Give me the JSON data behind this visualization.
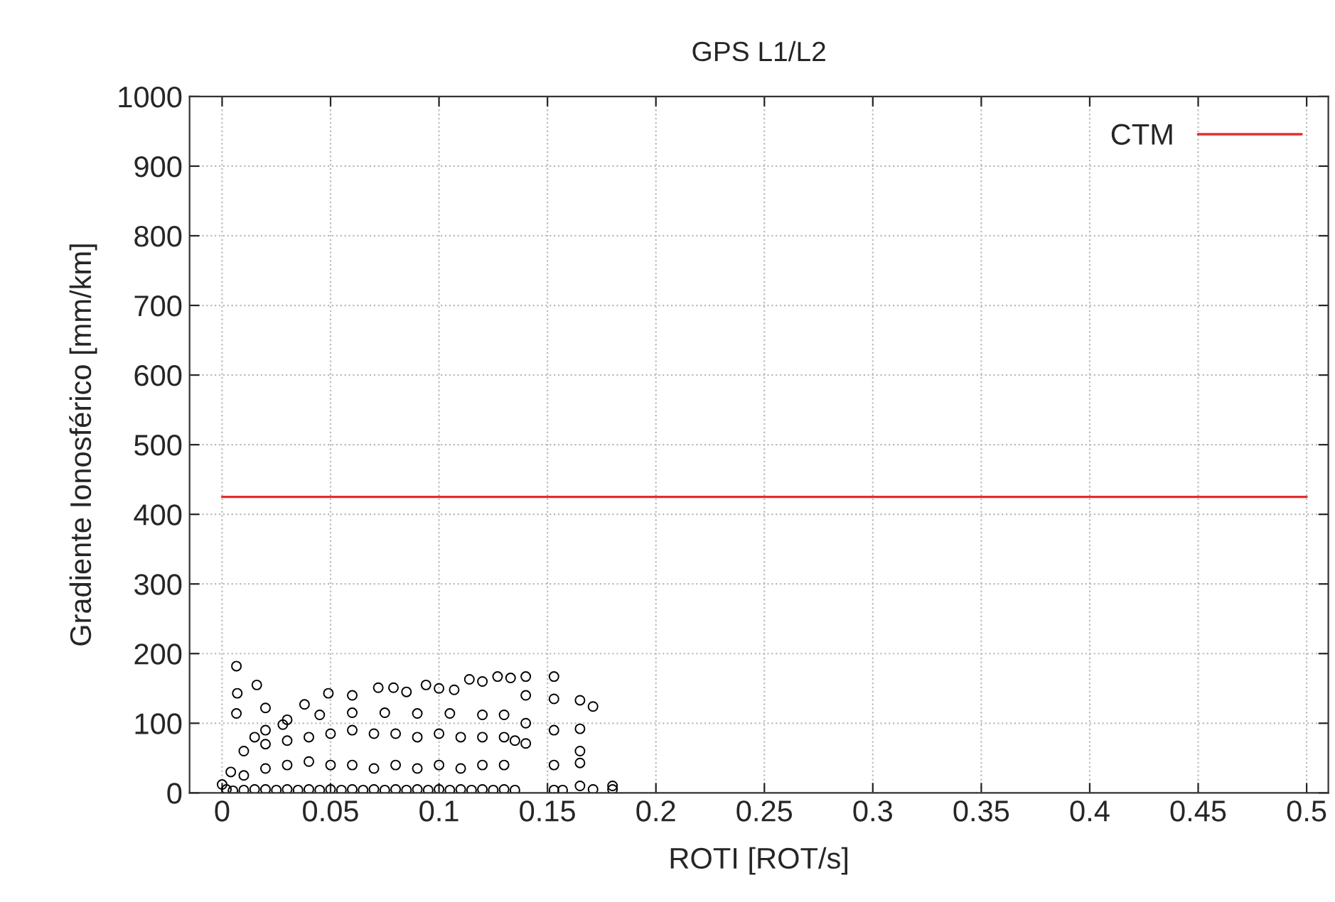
{
  "chart_data": {
    "type": "scatter",
    "title": "GPS L1/L2",
    "xlabel": "ROTI [ROT/s]",
    "ylabel": "Gradiente Ionosférico [mm/km]",
    "xlim": [
      -0.015,
      0.51
    ],
    "xticks": [
      0,
      0.05,
      0.1,
      0.15,
      0.2,
      0.25,
      0.3,
      0.35,
      0.4,
      0.45,
      0.5
    ],
    "ylim": [
      0,
      1000
    ],
    "yticks": [
      0,
      100,
      200,
      300,
      400,
      500,
      600,
      700,
      800,
      900,
      1000
    ],
    "grid": true,
    "legend": "top right",
    "series": [
      {
        "marker": "circle",
        "color": "#000000",
        "x": [
          0.0,
          0.002,
          0.004,
          0.0066,
          0.007,
          0.0066,
          0.016,
          0.02,
          0.01,
          0.015,
          0.02,
          0.028,
          0.038,
          0.049,
          0.06,
          0.072,
          0.079,
          0.085,
          0.094,
          0.1,
          0.107,
          0.114,
          0.12,
          0.127,
          0.133,
          0.14,
          0.14,
          0.14,
          0.14,
          0.153,
          0.153,
          0.153,
          0.153,
          0.153,
          0.157,
          0.165,
          0.165,
          0.165,
          0.165,
          0.165,
          0.171,
          0.171,
          0.18,
          0.18,
          0.005,
          0.01,
          0.015,
          0.02,
          0.025,
          0.03,
          0.035,
          0.04,
          0.045,
          0.05,
          0.055,
          0.06,
          0.065,
          0.07,
          0.075,
          0.08,
          0.085,
          0.09,
          0.095,
          0.1,
          0.105,
          0.11,
          0.115,
          0.12,
          0.125,
          0.13,
          0.135,
          0.01,
          0.02,
          0.03,
          0.04,
          0.05,
          0.06,
          0.07,
          0.08,
          0.09,
          0.1,
          0.11,
          0.12,
          0.13,
          0.02,
          0.03,
          0.04,
          0.05,
          0.06,
          0.07,
          0.08,
          0.09,
          0.1,
          0.11,
          0.12,
          0.13,
          0.135,
          0.03,
          0.045,
          0.06,
          0.075,
          0.09,
          0.105,
          0.12,
          0.13
        ],
        "values": [
          12,
          5,
          30,
          182,
          143,
          114,
          155,
          122,
          60,
          80,
          90,
          98,
          127,
          143,
          140,
          151,
          151,
          145,
          155,
          150,
          148,
          163,
          160,
          167,
          165,
          167,
          140,
          100,
          71,
          167,
          135,
          90,
          40,
          4,
          4,
          133,
          92,
          60,
          43,
          10,
          124,
          5,
          10,
          5,
          3,
          4,
          5,
          5,
          4,
          5,
          4,
          5,
          4,
          5,
          4,
          5,
          4,
          5,
          4,
          5,
          4,
          5,
          4,
          5,
          4,
          5,
          4,
          5,
          4,
          5,
          4,
          25,
          35,
          40,
          45,
          40,
          40,
          35,
          40,
          35,
          40,
          35,
          40,
          40,
          70,
          75,
          80,
          85,
          90,
          85,
          85,
          80,
          85,
          80,
          80,
          80,
          75,
          105,
          112,
          115,
          115,
          114,
          114,
          112,
          112
        ]
      },
      {
        "type": "line",
        "name": "CTM",
        "color": "#e03030",
        "x": [
          0,
          0.5
        ],
        "values": [
          425,
          425
        ]
      }
    ]
  }
}
